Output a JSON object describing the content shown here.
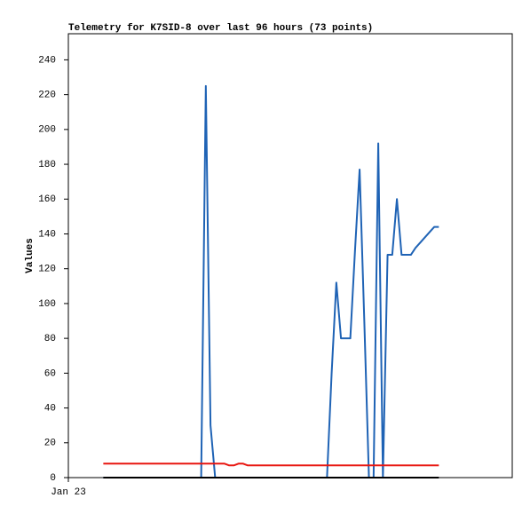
{
  "chart_data": {
    "type": "line",
    "title": "Telemetry for K7SID-8 over last 96 hours (73 points)",
    "ylabel": "Values",
    "x": [
      10,
      11.33,
      12.67,
      14,
      15.33,
      16.67,
      18,
      19.33,
      20.67,
      22,
      23.33,
      24.67,
      26,
      27.33,
      28.67,
      30,
      31.33,
      32.67,
      34,
      35.33,
      36.67,
      38,
      39.33,
      40.67,
      42,
      43.33,
      44.67,
      46,
      47.33,
      48.67,
      50,
      51.33,
      52.67,
      54,
      55.33,
      56.67,
      58,
      59.33,
      60.67,
      62,
      63.33,
      64.67,
      66,
      67.33,
      68.67,
      70,
      71.33,
      72.67,
      74,
      75.33,
      76.67,
      78,
      79.33,
      80.67,
      82,
      83.33,
      84.67,
      86,
      87.33,
      88.67,
      90,
      91.33,
      92.67,
      94,
      95.33,
      96.67,
      98,
      99.33,
      100.67,
      102,
      103.33,
      104.67,
      106
    ],
    "xlim": [
      0,
      127
    ],
    "xticks": [
      {
        "value": 0,
        "label": "Jan 23"
      }
    ],
    "ylim": [
      0,
      255
    ],
    "yticks": [
      0,
      20,
      40,
      60,
      80,
      100,
      120,
      140,
      160,
      180,
      200,
      220,
      240
    ],
    "series": [
      {
        "color": "#1f63b5",
        "values": [
          0,
          0,
          0,
          0,
          0,
          0,
          0,
          0,
          0,
          0,
          0,
          0,
          0,
          0,
          0,
          0,
          0,
          0,
          0,
          0,
          0,
          0,
          225,
          30,
          0,
          0,
          0,
          0,
          0,
          0,
          0,
          0,
          0,
          0,
          0,
          0,
          0,
          0,
          0,
          0,
          0,
          0,
          0,
          0,
          0,
          0,
          0,
          0,
          0,
          60,
          112,
          80,
          80,
          80,
          130,
          177,
          90,
          0,
          0,
          192,
          0,
          128,
          128,
          160,
          128,
          128,
          128,
          132,
          135,
          138,
          141,
          144,
          144
        ]
      },
      {
        "color": "#e8150f",
        "values": [
          8,
          8,
          8,
          8,
          8,
          8,
          8,
          8,
          8,
          8,
          8,
          8,
          8,
          8,
          8,
          8,
          8,
          8,
          8,
          8,
          8,
          8,
          8,
          8,
          8,
          8,
          8,
          7,
          7,
          8,
          8,
          7,
          7,
          7,
          7,
          7,
          7,
          7,
          7,
          7,
          7,
          7,
          7,
          7,
          7,
          7,
          7,
          7,
          7,
          7,
          7,
          7,
          7,
          7,
          7,
          7,
          7,
          7,
          7,
          7,
          7,
          7,
          7,
          7,
          7,
          7,
          7,
          7,
          7,
          7,
          7,
          7,
          7
        ]
      },
      {
        "color": "#000000",
        "values": [
          0,
          0,
          0,
          0,
          0,
          0,
          0,
          0,
          0,
          0,
          0,
          0,
          0,
          0,
          0,
          0,
          0,
          0,
          0,
          0,
          0,
          0,
          0,
          0,
          0,
          0,
          0,
          0,
          0,
          0,
          0,
          0,
          0,
          0,
          0,
          0,
          0,
          0,
          0,
          0,
          0,
          0,
          0,
          0,
          0,
          0,
          0,
          0,
          0,
          0,
          0,
          0,
          0,
          0,
          0,
          0,
          0,
          0,
          0,
          0,
          0,
          0,
          0,
          0,
          0,
          0,
          0,
          0,
          0,
          0,
          0,
          0,
          0
        ]
      }
    ]
  }
}
